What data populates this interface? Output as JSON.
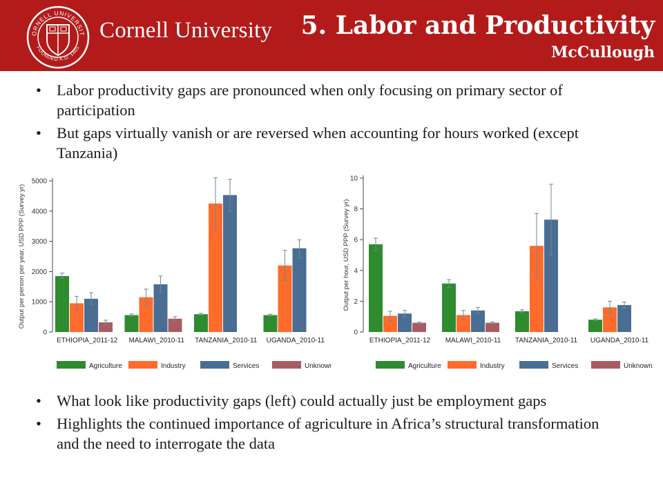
{
  "header": {
    "brand": "Cornell University",
    "seal_text_top": "CORNELL UNIVERSITY",
    "seal_text_bottom": "FOUNDED A.D. 1865",
    "title": "5. Labor and Productivity",
    "subtitle": "McCullough",
    "colors": {
      "header_bg": "#b31b1b"
    }
  },
  "top_bullets": [
    "Labor productivity gaps are pronounced when only focusing on primary sector of participation",
    "But gaps virtually vanish or are reversed when accounting for hours worked (except Tanzania)"
  ],
  "bottom_bullets": [
    "What look like productivity gaps (left) could actually just be employment gaps",
    "Highlights the continued importance of agriculture in Africa’s structural transformation and the need to interrogate the data"
  ],
  "chart_data": [
    {
      "type": "bar",
      "ylabel": "Output per person per year, USD PPP (Survey yr)",
      "ylim": [
        0,
        5000
      ],
      "yticks": [
        0,
        1000,
        2000,
        3000,
        4000,
        5000
      ],
      "categories": [
        "ETHIOPIA_2011-12",
        "MALAWI_2010-11",
        "TANZANIA_2010-11",
        "UGANDA_2010-11"
      ],
      "series": [
        {
          "name": "Agriculture",
          "color": "#2e8b2e",
          "values": [
            1850,
            560,
            590,
            560
          ],
          "err_low": [
            1780,
            520,
            560,
            530
          ],
          "err_high": [
            1950,
            600,
            620,
            590
          ]
        },
        {
          "name": "Industry",
          "color": "#ff6b2b",
          "values": [
            950,
            1150,
            4250,
            2200
          ],
          "err_low": [
            720,
            880,
            3350,
            1700
          ],
          "err_high": [
            1180,
            1420,
            5100,
            2700
          ]
        },
        {
          "name": "Services",
          "color": "#4a6d93",
          "values": [
            1100,
            1580,
            4530,
            2770
          ],
          "err_low": [
            920,
            1320,
            4000,
            2450
          ],
          "err_high": [
            1300,
            1850,
            5050,
            3050
          ]
        },
        {
          "name": "Unknown",
          "color": "#a85c62",
          "values": [
            320,
            440,
            0,
            0
          ],
          "err_low": [
            250,
            380,
            0,
            0
          ],
          "err_high": [
            390,
            510,
            0,
            0
          ]
        }
      ],
      "legend_position": "bottom"
    },
    {
      "type": "bar",
      "ylabel": "Output per hour, USD PPP (Survey yr)",
      "ylim": [
        0,
        10
      ],
      "yticks": [
        0,
        2,
        4,
        6,
        8,
        10
      ],
      "categories": [
        "ETHIOPIA_2011-12",
        "MALAWI_2010-11",
        "TANZANIA_2010-11",
        "UGANDA_2010-11"
      ],
      "series": [
        {
          "name": "Agriculture",
          "color": "#2e8b2e",
          "values": [
            5.7,
            3.15,
            1.35,
            0.8
          ],
          "err_low": [
            5.3,
            2.9,
            1.25,
            0.75
          ],
          "err_high": [
            6.1,
            3.4,
            1.45,
            0.85
          ]
        },
        {
          "name": "Industry",
          "color": "#ff6b2b",
          "values": [
            1.05,
            1.1,
            5.6,
            1.6
          ],
          "err_low": [
            0.75,
            0.8,
            3.5,
            1.2
          ],
          "err_high": [
            1.35,
            1.4,
            7.7,
            2.0
          ]
        },
        {
          "name": "Services",
          "color": "#4a6d93",
          "values": [
            1.2,
            1.4,
            7.3,
            1.75
          ],
          "err_low": [
            1.0,
            1.2,
            5.0,
            1.55
          ],
          "err_high": [
            1.4,
            1.6,
            9.6,
            1.95
          ]
        },
        {
          "name": "Unknown",
          "color": "#a85c62",
          "values": [
            0.6,
            0.6,
            0,
            0
          ],
          "err_low": [
            0.55,
            0.55,
            0,
            0
          ],
          "err_high": [
            0.65,
            0.65,
            0,
            0
          ]
        }
      ],
      "legend_position": "bottom"
    }
  ]
}
